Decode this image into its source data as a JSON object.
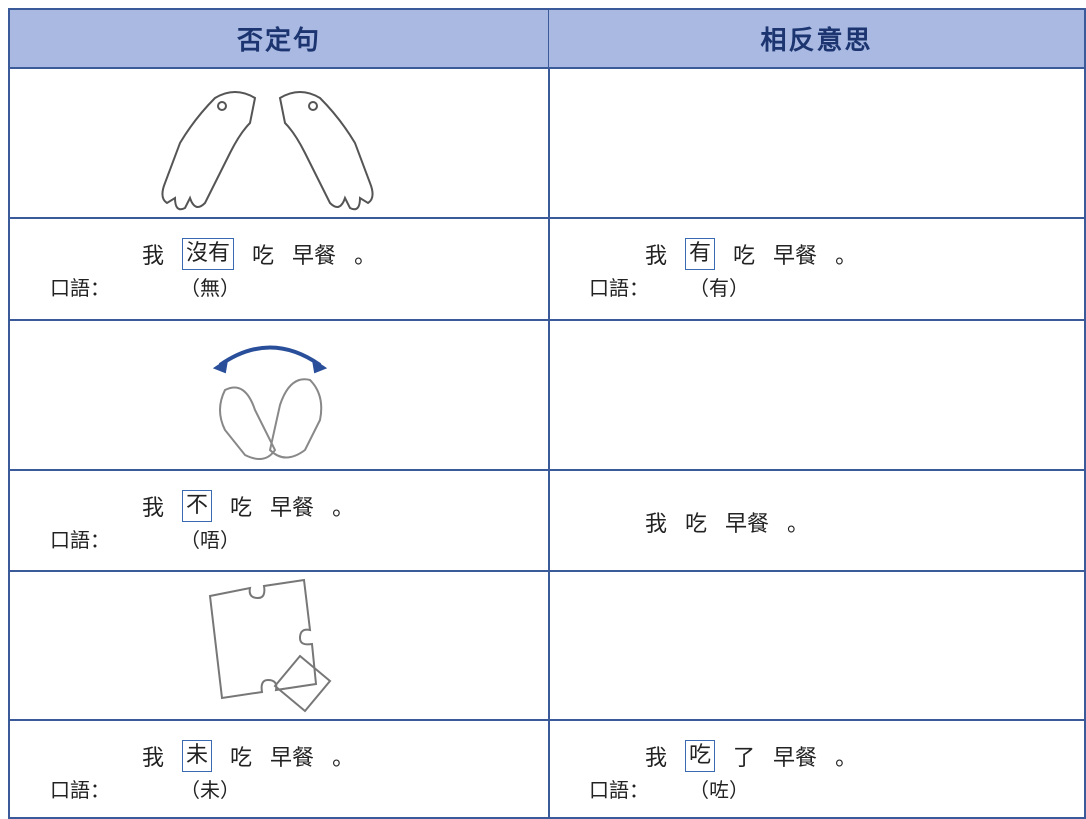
{
  "header": {
    "columns": [
      "否定句",
      "相反意思"
    ]
  },
  "rows": [
    {
      "left": {
        "words": [
          "我",
          "沒有",
          "吃",
          "早餐",
          "。"
        ],
        "boxed": 1,
        "spoken_label": "口語：",
        "spoken": "（無）"
      },
      "right": {
        "words": [
          "我",
          "有",
          "吃",
          "早餐",
          "。"
        ],
        "boxed": 1,
        "spoken_label": "口語：",
        "spoken": "（有）"
      }
    },
    {
      "left": {
        "words": [
          "我",
          "不",
          "吃",
          "早餐",
          "。"
        ],
        "boxed": 1,
        "spoken_label": "口語：",
        "spoken": "（唔）"
      },
      "right": {
        "words": [
          "我",
          "吃",
          "早餐",
          "。"
        ]
      }
    },
    {
      "left": {
        "words": [
          "我",
          "未",
          "吃",
          "早餐",
          "。"
        ],
        "boxed": 1,
        "spoken_label": "口語：",
        "spoken": "（未）"
      },
      "right": {
        "words": [
          "我",
          "吃",
          "了",
          "早餐",
          "。"
        ],
        "boxed": 1,
        "spoken_label": "口語：",
        "spoken": "（咗）"
      }
    }
  ]
}
